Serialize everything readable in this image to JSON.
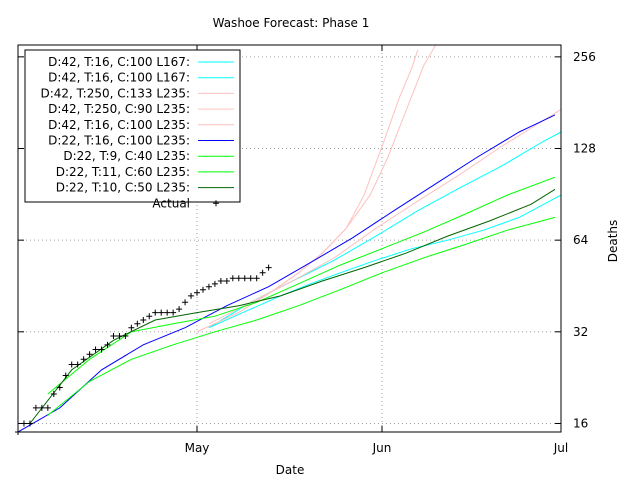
{
  "chart_data": {
    "type": "line",
    "title": "Washoe Forecast: Phase 1",
    "xlabel": "Date",
    "ylabel": "Deaths",
    "y_scale": "log2",
    "ylim": [
      15,
      280
    ],
    "xlim": [
      "2020-04-01",
      "2020-07-01"
    ],
    "x_ticks": [
      {
        "label": "May",
        "date": "2020-05-01"
      },
      {
        "label": "Jun",
        "date": "2020-06-01"
      },
      {
        "label": "Jul",
        "date": "2020-07-01"
      }
    ],
    "y_ticks": [
      16,
      32,
      64,
      128,
      256
    ],
    "grid": true,
    "legend_position": "top-left",
    "series": [
      {
        "name": "D:42, T:16, C:100 L167:",
        "color": "#00ffff",
        "points": [
          [
            "2020-05-03",
            33
          ],
          [
            "2020-05-10",
            38
          ],
          [
            "2020-05-15",
            42
          ],
          [
            "2020-05-20",
            46
          ],
          [
            "2020-05-25",
            50
          ],
          [
            "2020-05-31",
            55
          ],
          [
            "2020-06-06",
            60
          ],
          [
            "2020-06-12",
            64
          ],
          [
            "2020-06-18",
            69
          ],
          [
            "2020-06-24",
            76
          ],
          [
            "2020-07-01",
            90
          ]
        ]
      },
      {
        "name": "D:42, T:16, C:100 L167:",
        "color": "#00ffff",
        "points": [
          [
            "2020-05-03",
            33
          ],
          [
            "2020-05-10",
            40
          ],
          [
            "2020-05-17",
            47
          ],
          [
            "2020-05-24",
            55
          ],
          [
            "2020-05-31",
            66
          ],
          [
            "2020-06-07",
            80
          ],
          [
            "2020-06-14",
            95
          ],
          [
            "2020-06-21",
            112
          ],
          [
            "2020-06-28",
            135
          ],
          [
            "2020-07-01",
            145
          ]
        ]
      },
      {
        "name": "D:42, T:250, C:133 L235:",
        "color": "#ffc0c0",
        "points": [
          [
            "2020-05-01",
            32
          ],
          [
            "2020-05-08",
            37
          ],
          [
            "2020-05-14",
            44
          ],
          [
            "2020-05-18",
            50
          ],
          [
            "2020-05-22",
            58
          ],
          [
            "2020-05-26",
            70
          ],
          [
            "2020-05-30",
            90
          ],
          [
            "2020-06-02",
            120
          ],
          [
            "2020-06-05",
            170
          ],
          [
            "2020-06-08",
            240
          ],
          [
            "2020-06-10",
            280
          ]
        ]
      },
      {
        "name": "D:42, T:250, C:90 L235:",
        "color": "#ffc0c0",
        "points": [
          [
            "2020-05-01",
            32
          ],
          [
            "2020-05-08",
            37
          ],
          [
            "2020-05-14",
            44
          ],
          [
            "2020-05-18",
            50
          ],
          [
            "2020-05-22",
            58
          ],
          [
            "2020-05-26",
            70
          ],
          [
            "2020-05-29",
            90
          ],
          [
            "2020-06-01",
            130
          ],
          [
            "2020-06-04",
            190
          ],
          [
            "2020-06-06",
            235
          ],
          [
            "2020-06-07",
            270
          ]
        ]
      },
      {
        "name": "D:42, T:16, C:100 L235:",
        "color": "#ffc0c0",
        "points": [
          [
            "2020-05-03",
            34
          ],
          [
            "2020-05-10",
            40
          ],
          [
            "2020-05-17",
            47
          ],
          [
            "2020-05-24",
            56
          ],
          [
            "2020-05-31",
            70
          ],
          [
            "2020-06-07",
            86
          ],
          [
            "2020-06-14",
            105
          ],
          [
            "2020-06-21",
            130
          ],
          [
            "2020-06-28",
            158
          ],
          [
            "2020-07-01",
            172
          ]
        ]
      },
      {
        "name": "D:22, T:16, C:100 L235:",
        "color": "#0000ff",
        "points": [
          [
            "2020-04-01",
            15
          ],
          [
            "2020-04-08",
            18
          ],
          [
            "2020-04-15",
            24
          ],
          [
            "2020-04-22",
            29
          ],
          [
            "2020-04-29",
            33
          ],
          [
            "2020-05-06",
            39
          ],
          [
            "2020-05-13",
            45
          ],
          [
            "2020-05-20",
            54
          ],
          [
            "2020-05-27",
            65
          ],
          [
            "2020-06-03",
            80
          ],
          [
            "2020-06-10",
            98
          ],
          [
            "2020-06-17",
            120
          ],
          [
            "2020-06-24",
            145
          ],
          [
            "2020-06-30",
            165
          ]
        ]
      },
      {
        "name": "D:22, T:9, C:40 L235:",
        "color": "#00ff00",
        "points": [
          [
            "2020-04-06",
            20
          ],
          [
            "2020-04-13",
            26
          ],
          [
            "2020-04-20",
            32
          ],
          [
            "2020-04-27",
            34
          ],
          [
            "2020-05-04",
            36
          ],
          [
            "2020-05-11",
            40
          ],
          [
            "2020-05-18",
            46
          ],
          [
            "2020-05-25",
            53
          ],
          [
            "2020-06-01",
            60
          ],
          [
            "2020-06-08",
            68
          ],
          [
            "2020-06-15",
            78
          ],
          [
            "2020-06-22",
            90
          ],
          [
            "2020-06-30",
            103
          ]
        ]
      },
      {
        "name": "D:22, T:11, C:60 L235:",
        "color": "#00ff00",
        "points": [
          [
            "2020-04-06",
            17
          ],
          [
            "2020-04-13",
            22
          ],
          [
            "2020-04-20",
            26
          ],
          [
            "2020-04-27",
            29
          ],
          [
            "2020-05-04",
            32
          ],
          [
            "2020-05-11",
            35
          ],
          [
            "2020-05-18",
            39
          ],
          [
            "2020-05-25",
            44
          ],
          [
            "2020-06-01",
            50
          ],
          [
            "2020-06-08",
            56
          ],
          [
            "2020-06-15",
            62
          ],
          [
            "2020-06-22",
            69
          ],
          [
            "2020-06-30",
            76
          ]
        ]
      },
      {
        "name": "D:22, T:10, C:50 L235:",
        "color": "#006400",
        "points": [
          [
            "2020-04-03",
            16
          ],
          [
            "2020-04-10",
            24
          ],
          [
            "2020-04-17",
            30
          ],
          [
            "2020-04-24",
            35
          ],
          [
            "2020-05-01",
            37
          ],
          [
            "2020-05-08",
            39
          ],
          [
            "2020-05-15",
            42
          ],
          [
            "2020-05-22",
            47
          ],
          [
            "2020-05-29",
            52
          ],
          [
            "2020-06-05",
            58
          ],
          [
            "2020-06-12",
            66
          ],
          [
            "2020-06-19",
            74
          ],
          [
            "2020-06-26",
            84
          ],
          [
            "2020-06-30",
            94
          ]
        ]
      }
    ],
    "actual": {
      "name": "Actual",
      "marker": "+",
      "points": [
        [
          "2020-04-01",
          15
        ],
        [
          "2020-04-02",
          16
        ],
        [
          "2020-04-03",
          16
        ],
        [
          "2020-04-04",
          18
        ],
        [
          "2020-04-05",
          18
        ],
        [
          "2020-04-06",
          18
        ],
        [
          "2020-04-07",
          20
        ],
        [
          "2020-04-08",
          21
        ],
        [
          "2020-04-09",
          23
        ],
        [
          "2020-04-10",
          25
        ],
        [
          "2020-04-11",
          25
        ],
        [
          "2020-04-12",
          26
        ],
        [
          "2020-04-13",
          27
        ],
        [
          "2020-04-14",
          28
        ],
        [
          "2020-04-15",
          28
        ],
        [
          "2020-04-16",
          29
        ],
        [
          "2020-04-17",
          31
        ],
        [
          "2020-04-18",
          31
        ],
        [
          "2020-04-19",
          31
        ],
        [
          "2020-04-20",
          33
        ],
        [
          "2020-04-21",
          34
        ],
        [
          "2020-04-22",
          35
        ],
        [
          "2020-04-23",
          36
        ],
        [
          "2020-04-24",
          37
        ],
        [
          "2020-04-25",
          37
        ],
        [
          "2020-04-26",
          37
        ],
        [
          "2020-04-27",
          37
        ],
        [
          "2020-04-28",
          38
        ],
        [
          "2020-04-29",
          40
        ],
        [
          "2020-04-30",
          42
        ],
        [
          "2020-05-01",
          43
        ],
        [
          "2020-05-02",
          44
        ],
        [
          "2020-05-03",
          45
        ],
        [
          "2020-05-04",
          46
        ],
        [
          "2020-05-05",
          47
        ],
        [
          "2020-05-06",
          47
        ],
        [
          "2020-05-07",
          48
        ],
        [
          "2020-05-08",
          48
        ],
        [
          "2020-05-09",
          48
        ],
        [
          "2020-05-10",
          48
        ],
        [
          "2020-05-11",
          48
        ],
        [
          "2020-05-12",
          50
        ],
        [
          "2020-05-13",
          52
        ]
      ]
    }
  }
}
